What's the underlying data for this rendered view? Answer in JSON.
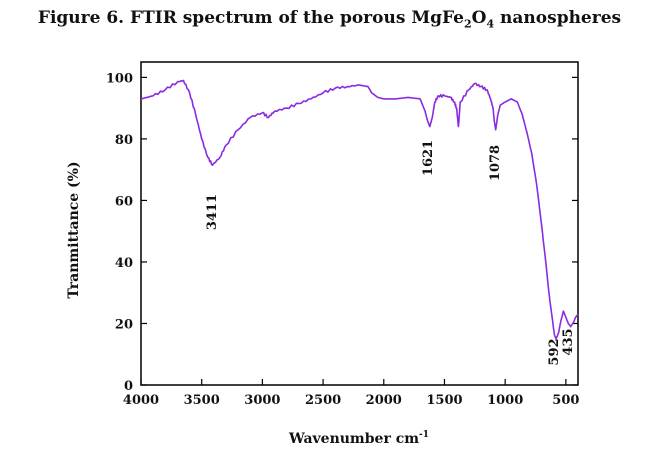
{
  "title_parts": {
    "prefix": "Figure 6. FTIR spectrum of the porous MgFe",
    "sub1": "2",
    "mid": "O",
    "sub2": "4",
    "suffix": " nanospheres"
  },
  "chart_data": {
    "type": "line",
    "title": "Figure 6. FTIR spectrum of the porous MgFe2O4 nanospheres",
    "xlabel": "Wavenumber cm",
    "xlabel_sup": "-1",
    "ylabel": "Tranmittance (%)",
    "xlim": [
      4000,
      400
    ],
    "ylim": [
      0,
      105
    ],
    "x_reversed": true,
    "x_ticks": [
      4000,
      3500,
      3000,
      2500,
      2000,
      1500,
      1000,
      500
    ],
    "y_ticks": [
      0,
      20,
      40,
      60,
      80,
      100
    ],
    "series": [
      {
        "color": "#8a2be2",
        "x": [
          4000,
          3900,
          3800,
          3700,
          3650,
          3600,
          3550,
          3500,
          3450,
          3411,
          3350,
          3300,
          3200,
          3100,
          3000,
          2950,
          2900,
          2800,
          2700,
          2600,
          2500,
          2400,
          2300,
          2200,
          2130,
          2100,
          2050,
          2000,
          1900,
          1800,
          1700,
          1660,
          1640,
          1621,
          1600,
          1580,
          1550,
          1500,
          1450,
          1420,
          1400,
          1385,
          1370,
          1300,
          1250,
          1200,
          1150,
          1120,
          1100,
          1090,
          1078,
          1060,
          1040,
          1000,
          950,
          900,
          860,
          820,
          780,
          740,
          700,
          680,
          660,
          640,
          620,
          600,
          592,
          580,
          560,
          540,
          520,
          500,
          480,
          460,
          435,
          420,
          410,
          400
        ],
        "y": [
          93,
          94,
          96,
          98.5,
          99,
          95,
          88,
          80,
          74,
          71.5,
          74,
          78,
          83,
          87,
          88.5,
          87,
          89,
          90,
          91.5,
          93,
          95,
          96.5,
          97,
          97.5,
          97,
          95,
          93.5,
          93,
          93,
          93.5,
          93,
          89,
          86,
          84,
          87,
          92,
          94,
          94,
          93.5,
          92,
          90,
          84,
          92,
          96,
          98,
          97,
          96,
          93,
          90,
          86,
          83,
          88,
          91,
          92,
          93,
          92,
          88,
          82,
          75,
          65,
          52,
          45,
          38,
          30,
          24,
          18,
          16,
          15,
          17,
          21,
          24,
          22,
          20,
          19,
          20.5,
          22,
          22.5,
          23
        ]
      }
    ],
    "annotations": [
      "3411",
      "1621",
      "1078",
      "592",
      "435"
    ]
  }
}
